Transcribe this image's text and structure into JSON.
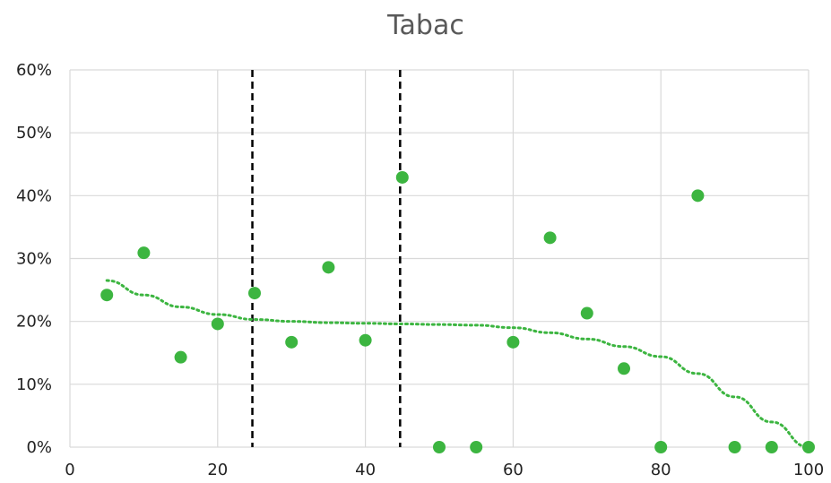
{
  "chart_data": {
    "type": "scatter",
    "title": "Tabac",
    "xlabel": "",
    "ylabel": "",
    "xlim": [
      0,
      100
    ],
    "ylim": [
      0,
      0.6
    ],
    "x_ticks": [
      0,
      20,
      40,
      60,
      80,
      100
    ],
    "y_ticks": [
      0,
      0.1,
      0.2,
      0.3,
      0.4,
      0.5,
      0.6
    ],
    "x_tick_labels": [
      "0",
      "20",
      "40",
      "60",
      "80",
      "100"
    ],
    "y_tick_labels": [
      "0%",
      "10%",
      "20%",
      "30%",
      "40%",
      "50%",
      "60%"
    ],
    "grid": true,
    "legend": "none",
    "series": [
      {
        "color": "#3cb540",
        "points": [
          {
            "x": 5,
            "y": 0.242
          },
          {
            "x": 10,
            "y": 0.309
          },
          {
            "x": 15,
            "y": 0.143
          },
          {
            "x": 20,
            "y": 0.196
          },
          {
            "x": 25,
            "y": 0.245
          },
          {
            "x": 30,
            "y": 0.167
          },
          {
            "x": 35,
            "y": 0.286
          },
          {
            "x": 40,
            "y": 0.17
          },
          {
            "x": 45,
            "y": 0.429
          },
          {
            "x": 50,
            "y": 0.0
          },
          {
            "x": 55,
            "y": 0.0
          },
          {
            "x": 60,
            "y": 0.167
          },
          {
            "x": 65,
            "y": 0.333
          },
          {
            "x": 70,
            "y": 0.213
          },
          {
            "x": 75,
            "y": 0.125
          },
          {
            "x": 80,
            "y": 0.0
          },
          {
            "x": 85,
            "y": 0.4
          },
          {
            "x": 90,
            "y": 0.0
          },
          {
            "x": 95,
            "y": 0.0
          },
          {
            "x": 100,
            "y": 0.0
          }
        ]
      }
    ],
    "trendline": {
      "style": "dotted",
      "color": "#3cb540",
      "points": [
        {
          "x": 5,
          "y": 0.265
        },
        {
          "x": 10,
          "y": 0.242
        },
        {
          "x": 15,
          "y": 0.223
        },
        {
          "x": 20,
          "y": 0.211
        },
        {
          "x": 25,
          "y": 0.203
        },
        {
          "x": 30,
          "y": 0.2
        },
        {
          "x": 35,
          "y": 0.198
        },
        {
          "x": 40,
          "y": 0.197
        },
        {
          "x": 45,
          "y": 0.196
        },
        {
          "x": 50,
          "y": 0.195
        },
        {
          "x": 55,
          "y": 0.194
        },
        {
          "x": 60,
          "y": 0.19
        },
        {
          "x": 65,
          "y": 0.182
        },
        {
          "x": 70,
          "y": 0.172
        },
        {
          "x": 75,
          "y": 0.16
        },
        {
          "x": 80,
          "y": 0.144
        },
        {
          "x": 85,
          "y": 0.117
        },
        {
          "x": 90,
          "y": 0.08
        },
        {
          "x": 95,
          "y": 0.04
        },
        {
          "x": 100,
          "y": 0.0
        }
      ]
    },
    "reference_lines": [
      {
        "orientation": "vertical",
        "x": 24.7,
        "style": "dashed",
        "color": "#000000"
      },
      {
        "orientation": "vertical",
        "x": 44.7,
        "style": "dashed",
        "color": "#000000"
      }
    ]
  }
}
